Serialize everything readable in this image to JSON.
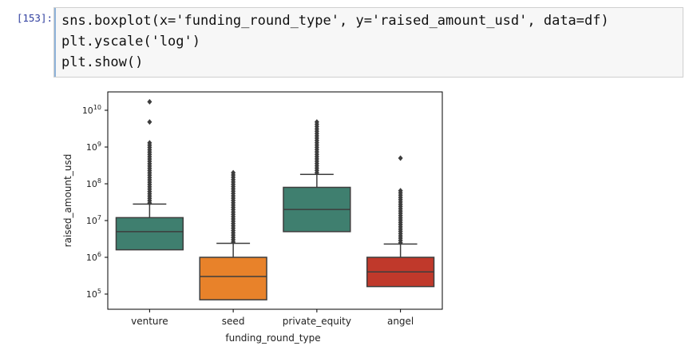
{
  "cell": {
    "prompt": "[153]:",
    "code_lines": [
      "sns.boxplot(x='funding_round_type', y='raised_amount_usd', data=df)",
      "plt.yscale('log')",
      "plt.show()"
    ]
  },
  "colors": {
    "prompt": "#303f9f",
    "cell_border": "#cfcfcf",
    "cell_background": "#f7f7f7",
    "box_edge": "#3d3d3d"
  },
  "chart_data": {
    "type": "box",
    "xlabel": "funding_round_type",
    "ylabel": "raised_amount_usd",
    "y_scale": "log",
    "ylim": [
      40000,
      30000000000
    ],
    "y_ticks": [
      {
        "value": 100000,
        "base": "10",
        "exp": "5"
      },
      {
        "value": 1000000,
        "base": "10",
        "exp": "6"
      },
      {
        "value": 10000000,
        "base": "10",
        "exp": "7"
      },
      {
        "value": 100000000,
        "base": "10",
        "exp": "8"
      },
      {
        "value": 1000000000,
        "base": "10",
        "exp": "9"
      },
      {
        "value": 10000000000,
        "base": "10",
        "exp": "10"
      }
    ],
    "categories": [
      "venture",
      "seed",
      "private_equity",
      "angel"
    ],
    "boxes": [
      {
        "category": "venture",
        "color": "#3f7f6f",
        "q1": 1600000,
        "median": 5000000,
        "q3": 12000000,
        "whisker_low": 1600000,
        "whisker_high": 28000000,
        "outlier_range": [
          30000000,
          1300000000
        ],
        "outliers": [
          4800000000,
          17000000000
        ]
      },
      {
        "category": "seed",
        "color": "#e8822a",
        "q1": 70000,
        "median": 300000,
        "q3": 1000000,
        "whisker_low": 70000,
        "whisker_high": 2400000,
        "outlier_range": [
          2600000,
          200000000
        ],
        "outliers": []
      },
      {
        "category": "private_equity",
        "color": "#3f7f6f",
        "q1": 5000000,
        "median": 20000000,
        "q3": 80000000,
        "whisker_low": 5000000,
        "whisker_high": 180000000,
        "outlier_range": [
          200000000,
          4800000000
        ],
        "outliers": []
      },
      {
        "category": "angel",
        "color": "#c0392b",
        "q1": 160000,
        "median": 400000,
        "q3": 1000000,
        "whisker_low": 160000,
        "whisker_high": 2300000,
        "outlier_range": [
          2500000,
          65000000
        ],
        "outliers": [
          500000000
        ]
      }
    ]
  }
}
